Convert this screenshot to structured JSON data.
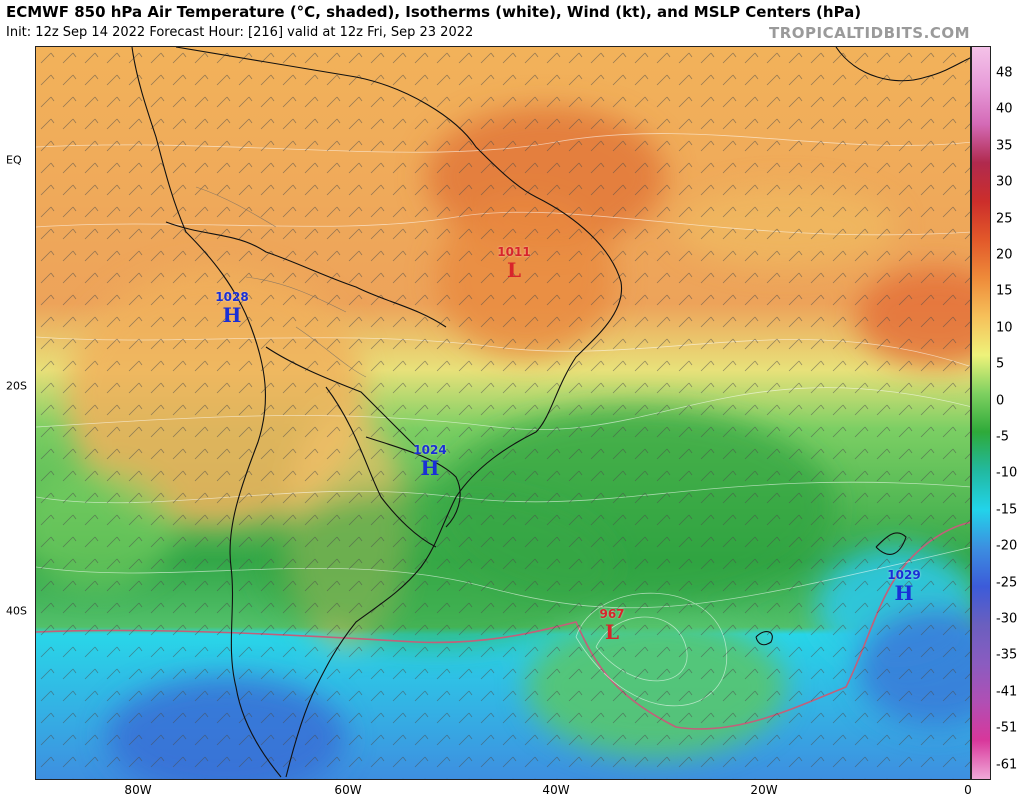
{
  "header": {
    "title": "ECMWF 850 hPa Air Temperature (°C, shaded), Isotherms (white), Wind (kt), and MSLP Centers (hPa)",
    "subtitle": "Init: 12z Sep 14 2022   Forecast Hour: [216]   valid at 12z Fri, Sep 23 2022",
    "brand": "TROPICALTIDBITS.COM"
  },
  "map": {
    "lat_labels": [
      "EQ",
      "20S",
      "40S"
    ],
    "lon_labels": [
      "80W",
      "60W",
      "40W",
      "20W",
      "0"
    ],
    "pressure_centers": [
      {
        "type": "high",
        "value": "1028",
        "letter": "H"
      },
      {
        "type": "low",
        "value": "1011",
        "letter": "L"
      },
      {
        "type": "high",
        "value": "1024",
        "letter": "H"
      },
      {
        "type": "low",
        "value": "967",
        "letter": "L"
      },
      {
        "type": "high",
        "value": "1029",
        "letter": "H"
      }
    ]
  },
  "colorbar": {
    "labels": [
      "48",
      "40",
      "35",
      "30",
      "25",
      "20",
      "15",
      "10",
      "5",
      "0",
      "-5",
      "-10",
      "-15",
      "-20",
      "-25",
      "-30",
      "-35",
      "-41",
      "-51",
      "-61"
    ],
    "colors": [
      "#f4c2e8",
      "#e79cd9",
      "#d46bb7",
      "#b02a4e",
      "#cc2e2b",
      "#e2582a",
      "#ee8b3a",
      "#f6c05a",
      "#eef27a",
      "#7dd060",
      "#2eaa3a",
      "#22b9a0",
      "#22d3ea",
      "#3c8fe0",
      "#3c5bd9",
      "#6a5fbf",
      "#8a5cc0",
      "#b04fb4",
      "#d8379b",
      "#f0a9d8"
    ]
  }
}
